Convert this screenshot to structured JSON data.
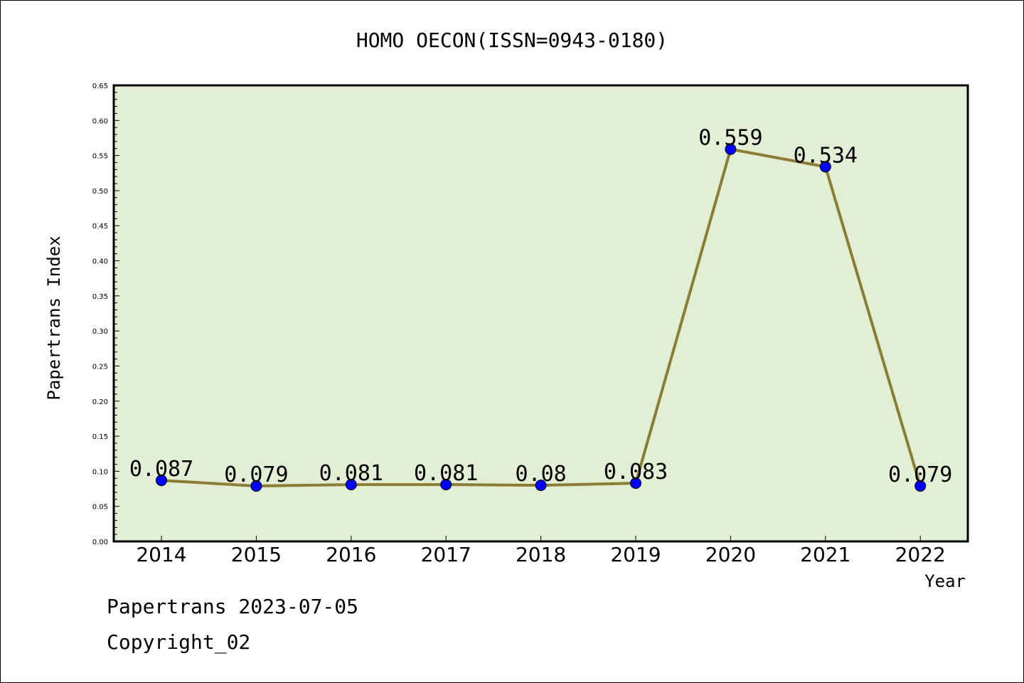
{
  "chart_data": {
    "type": "line",
    "title": "HOMO OECON(ISSN=0943-0180)",
    "xlabel": "Year",
    "ylabel": "Papertrans Index",
    "categories": [
      "2014",
      "2015",
      "2016",
      "2017",
      "2018",
      "2019",
      "2020",
      "2021",
      "2022"
    ],
    "values": [
      0.087,
      0.079,
      0.081,
      0.081,
      0.08,
      0.083,
      0.559,
      0.534,
      0.079
    ],
    "value_labels": [
      "0.087",
      "0.079",
      "0.081",
      "0.081",
      "0.08",
      "0.083",
      "0.559",
      "0.534",
      "0.079"
    ],
    "ylim": [
      0,
      0.65
    ],
    "yticks": [
      "0.00",
      "0.05",
      "0.10",
      "0.15",
      "0.20",
      "0.25",
      "0.30",
      "0.35",
      "0.40",
      "0.45",
      "0.50",
      "0.55",
      "0.60",
      "0.65"
    ],
    "grid": false,
    "colors": {
      "plot_background": "#e2efd4",
      "line": "#8b7d35",
      "marker": "#0000ff"
    }
  },
  "footer": {
    "line1": "Papertrans 2023-07-05",
    "line2": "Copyright_02"
  }
}
